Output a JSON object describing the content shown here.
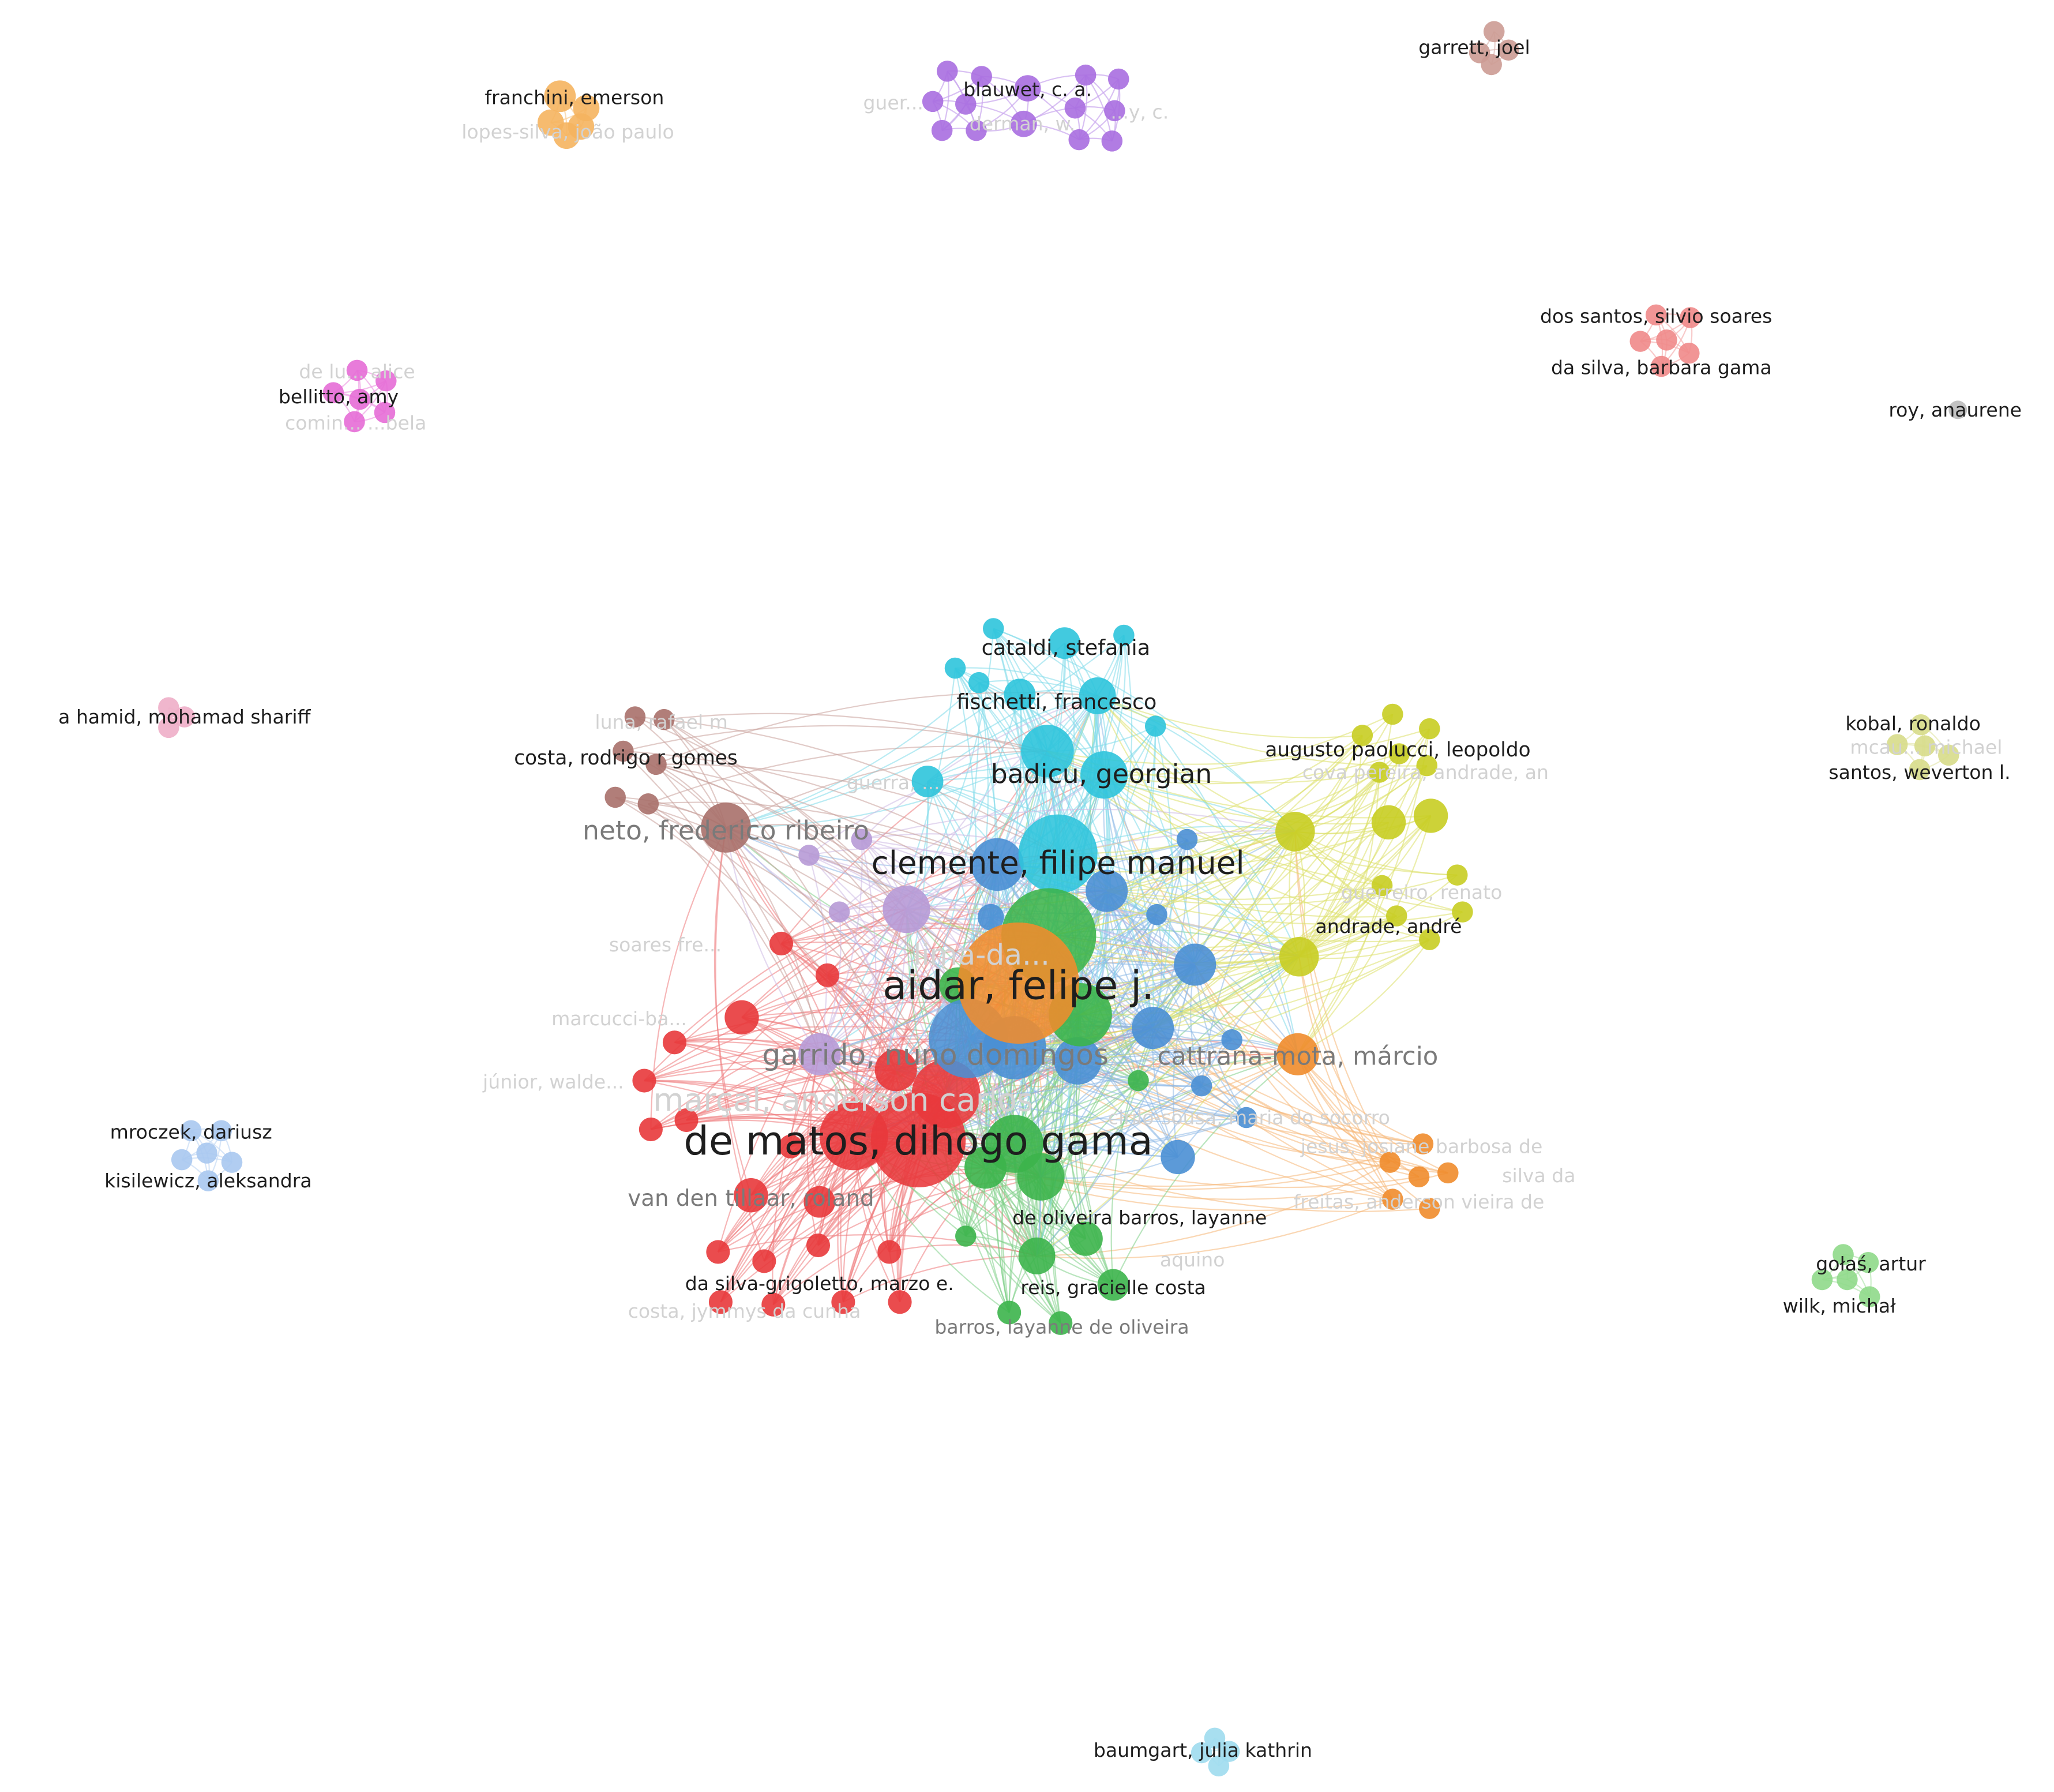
{
  "clusters": [
    {
      "id": "red",
      "color": "#e8383b",
      "edge_color": "#ee7a7c"
    },
    {
      "id": "green",
      "color": "#3cb44b",
      "edge_color": "#7fd088"
    },
    {
      "id": "blue",
      "color": "#4a8fd4",
      "edge_color": "#8cb8e6"
    },
    {
      "id": "yellow",
      "color": "#c8cd22",
      "edge_color": "#dde06a"
    },
    {
      "id": "lilac",
      "color": "#b79ad6",
      "edge_color": "#cdb9e4"
    },
    {
      "id": "cyan",
      "color": "#2ec4dc",
      "edge_color": "#7fdbea"
    },
    {
      "id": "orange",
      "color": "#f08c2c",
      "edge_color": "#f5b676"
    },
    {
      "id": "brown",
      "color": "#a8706a",
      "edge_color": "#c9a09b"
    },
    {
      "id": "purple",
      "color": "#a86ee0",
      "edge_color": "#c9a6ee"
    },
    {
      "id": "peach",
      "color": "#f5b45f",
      "edge_color": "#f8cf98"
    },
    {
      "id": "pink",
      "color": "#e56dd6",
      "edge_color": "#eea2e4"
    },
    {
      "id": "salmon",
      "color": "#f08a8a",
      "edge_color": "#f5b4b4"
    },
    {
      "id": "mauve",
      "color": "#cc9b93",
      "edge_color": "#ddbcb6"
    },
    {
      "id": "lightpink",
      "color": "#eeaec8",
      "edge_color": "#f3c9da"
    },
    {
      "id": "lightblue",
      "color": "#a9c8ef",
      "edge_color": "#c8dcf5"
    },
    {
      "id": "olive",
      "color": "#d7dc8a",
      "edge_color": "#e5e8b2"
    },
    {
      "id": "lightgreen",
      "color": "#8fd98a",
      "edge_color": "#b7e7b3"
    },
    {
      "id": "skyblue",
      "color": "#9fdcee",
      "edge_color": "#c4e9f4"
    },
    {
      "id": "grey",
      "color": "#bbbbbb",
      "edge_color": "#d6d6d6"
    }
  ],
  "labels": [
    {
      "text": "aidar, felipe j.",
      "tone": "strong",
      "weight": 3
    },
    {
      "text": "de matos, dihogo gama",
      "tone": "strong",
      "weight": 3
    },
    {
      "text": "clemente, filipe manuel",
      "tone": "strong",
      "weight": 2.4
    },
    {
      "text": "garrido, nuno domingos",
      "tone": "medium",
      "weight": 2.2
    },
    {
      "text": "badicu, georgian",
      "tone": "strong",
      "weight": 2
    },
    {
      "text": "neto, frederico ribeiro",
      "tone": "medium",
      "weight": 2
    },
    {
      "text": "cattrana-mota, márcio",
      "tone": "medium",
      "weight": 1.9
    },
    {
      "text": "van den tillaar, roland",
      "tone": "medium",
      "weight": 1.7
    },
    {
      "text": "marçal, anderson carlos",
      "tone": "faint",
      "weight": 2.4
    },
    {
      "text": "cataldi, stefania",
      "tone": "strong",
      "weight": 1.6
    },
    {
      "text": "fischetti, francesco",
      "tone": "strong",
      "weight": 1.6
    },
    {
      "text": "costa, rodrigo r gomes",
      "tone": "strong",
      "weight": 1.5
    },
    {
      "text": "augusto paolucci, leopoldo",
      "tone": "strong",
      "weight": 1.5
    },
    {
      "text": "andrade, andré",
      "tone": "strong",
      "weight": 1.45
    },
    {
      "text": "guerreiro, renato",
      "tone": "faint",
      "weight": 1.45
    },
    {
      "text": "de oliveira barros, layanne",
      "tone": "strong",
      "weight": 1.45
    },
    {
      "text": "reis, gracielle costa",
      "tone": "strong",
      "weight": 1.45
    },
    {
      "text": "barros, layanne de oliveira",
      "tone": "medium",
      "weight": 1.45
    },
    {
      "text": "da silva-grigoletto, marzo e.",
      "tone": "strong",
      "weight": 1.45
    },
    {
      "text": "costa, jymmys da cunha",
      "tone": "faint",
      "weight": 1.45
    },
    {
      "text": "cirilo-sousa, maria do socorro",
      "tone": "faint",
      "weight": 1.45
    },
    {
      "text": "jesus, josiane barbosa de",
      "tone": "faint",
      "weight": 1.45
    },
    {
      "text": "freitas, anderson vieira de",
      "tone": "faint",
      "weight": 1.45
    },
    {
      "text": "silva da",
      "tone": "faint",
      "weight": 1.45
    },
    {
      "text": "luna, rafael m",
      "tone": "faint",
      "weight": 1.45
    },
    {
      "text": "guerra, ...",
      "tone": "faint",
      "weight": 1.45
    },
    {
      "text": "soares fre...",
      "tone": "faint",
      "weight": 1.45
    },
    {
      "text": "marcucci-ba...",
      "tone": "faint",
      "weight": 1.45
    },
    {
      "text": "júnior, walde...",
      "tone": "faint",
      "weight": 1.45
    },
    {
      "text": "lima-da...",
      "tone": "faint",
      "weight": 2.2
    },
    {
      "text": "aquino",
      "tone": "faint",
      "weight": 1.45
    },
    {
      "text": "cova pereira, andrade, an",
      "tone": "faint",
      "weight": 1.45
    },
    {
      "text": "franchini, emerson",
      "tone": "strong",
      "weight": 1.45
    },
    {
      "text": "lopes-silva, joão paulo",
      "tone": "faint",
      "weight": 1.45
    },
    {
      "text": "blauwet, c. a.",
      "tone": "strong",
      "weight": 1.45
    },
    {
      "text": "derman, w.",
      "tone": "faint",
      "weight": 1.45
    },
    {
      "text": "guer...",
      "tone": "faint",
      "weight": 1.45
    },
    {
      "text": "...y, c.",
      "tone": "faint",
      "weight": 1.45
    },
    {
      "text": "garrett, joel",
      "tone": "strong",
      "weight": 1.45
    },
    {
      "text": "dos santos, silvio soares",
      "tone": "strong",
      "weight": 1.45
    },
    {
      "text": "da silva, barbara gama",
      "tone": "strong",
      "weight": 1.45
    },
    {
      "text": "roy, anaurene",
      "tone": "strong",
      "weight": 1.45
    },
    {
      "text": "de lu... alice",
      "tone": "faint",
      "weight": 1.45
    },
    {
      "text": "bellitto, amy",
      "tone": "strong",
      "weight": 1.45
    },
    {
      "text": "comin... ...bela",
      "tone": "faint",
      "weight": 1.45
    },
    {
      "text": "a hamid, mohamad shariff",
      "tone": "strong",
      "weight": 1.45
    },
    {
      "text": "kobal, ronaldo",
      "tone": "strong",
      "weight": 1.45
    },
    {
      "text": "mcau... michael",
      "tone": "faint",
      "weight": 1.45
    },
    {
      "text": "santos, weverton l.",
      "tone": "strong",
      "weight": 1.45
    },
    {
      "text": "mroczek, dariusz",
      "tone": "strong",
      "weight": 1.45
    },
    {
      "text": "kisilewicz, aleksandra",
      "tone": "strong",
      "weight": 1.45
    },
    {
      "text": "gołaś, artur",
      "tone": "strong",
      "weight": 1.45
    },
    {
      "text": "wilk, michał",
      "tone": "strong",
      "weight": 1.45
    },
    {
      "text": "baumgart, julia kathrin",
      "tone": "strong",
      "weight": 1.45
    }
  ],
  "tones": {
    "strong": "#1e1e1e",
    "medium": "#7a7a7a",
    "faint": "#d2d2d2"
  }
}
